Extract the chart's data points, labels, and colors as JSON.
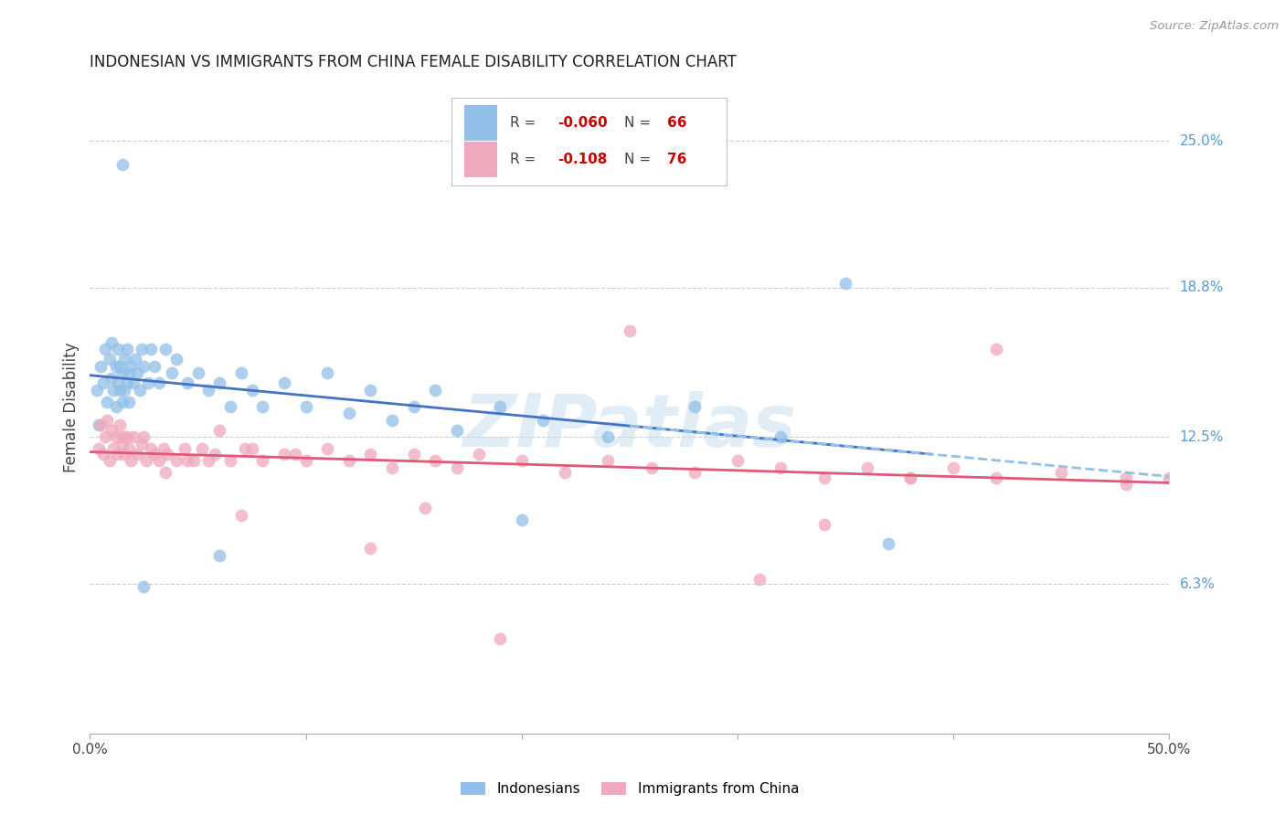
{
  "title": "INDONESIAN VS IMMIGRANTS FROM CHINA FEMALE DISABILITY CORRELATION CHART",
  "source": "Source: ZipAtlas.com",
  "ylabel": "Female Disability",
  "right_yticks": [
    "25.0%",
    "18.8%",
    "12.5%",
    "6.3%"
  ],
  "right_ytick_vals": [
    0.25,
    0.188,
    0.125,
    0.063
  ],
  "xlim": [
    0.0,
    0.5
  ],
  "ylim": [
    0.0,
    0.275
  ],
  "watermark": "ZIPatlas",
  "indonesian_color": "#92c0e8",
  "immigrant_color": "#f0a8bc",
  "trend_blue_solid": "#4472c4",
  "trend_pink_solid": "#e05878",
  "trend_blue_dashed": "#92c0e8",
  "grid_color": "#cccccc",
  "right_label_color": "#5b9bd5",
  "title_color": "#1f1f1f",
  "source_color": "#999999",
  "ylabel_color": "#444444",
  "xtick_color": "#444444",
  "legend_border": "#c0c0c0",
  "legend_r_color": "#cc0000",
  "legend_n_color": "#cc0000",
  "legend_text_color": "#444444",
  "indonesian_x": [
    0.003,
    0.004,
    0.005,
    0.006,
    0.007,
    0.008,
    0.009,
    0.01,
    0.01,
    0.011,
    0.012,
    0.012,
    0.013,
    0.013,
    0.014,
    0.014,
    0.015,
    0.015,
    0.016,
    0.016,
    0.017,
    0.017,
    0.018,
    0.018,
    0.019,
    0.02,
    0.021,
    0.022,
    0.023,
    0.024,
    0.025,
    0.027,
    0.028,
    0.03,
    0.032,
    0.035,
    0.038,
    0.04,
    0.045,
    0.05,
    0.055,
    0.06,
    0.065,
    0.07,
    0.075,
    0.08,
    0.09,
    0.1,
    0.11,
    0.12,
    0.13,
    0.14,
    0.15,
    0.16,
    0.17,
    0.19,
    0.21,
    0.24,
    0.28,
    0.32,
    0.35,
    0.37,
    0.2,
    0.06,
    0.025,
    0.015
  ],
  "indonesian_y": [
    0.145,
    0.13,
    0.155,
    0.148,
    0.162,
    0.14,
    0.158,
    0.15,
    0.165,
    0.145,
    0.155,
    0.138,
    0.148,
    0.162,
    0.145,
    0.155,
    0.14,
    0.152,
    0.158,
    0.145,
    0.148,
    0.162,
    0.152,
    0.14,
    0.155,
    0.148,
    0.158,
    0.152,
    0.145,
    0.162,
    0.155,
    0.148,
    0.162,
    0.155,
    0.148,
    0.162,
    0.152,
    0.158,
    0.148,
    0.152,
    0.145,
    0.148,
    0.138,
    0.152,
    0.145,
    0.138,
    0.148,
    0.138,
    0.152,
    0.135,
    0.145,
    0.132,
    0.138,
    0.145,
    0.128,
    0.138,
    0.132,
    0.125,
    0.138,
    0.125,
    0.19,
    0.08,
    0.09,
    0.075,
    0.062,
    0.24
  ],
  "immigrant_x": [
    0.004,
    0.005,
    0.006,
    0.007,
    0.008,
    0.009,
    0.01,
    0.011,
    0.012,
    0.013,
    0.014,
    0.015,
    0.016,
    0.017,
    0.018,
    0.019,
    0.02,
    0.022,
    0.024,
    0.026,
    0.028,
    0.03,
    0.032,
    0.034,
    0.036,
    0.04,
    0.044,
    0.048,
    0.052,
    0.058,
    0.065,
    0.072,
    0.08,
    0.09,
    0.1,
    0.11,
    0.12,
    0.13,
    0.14,
    0.15,
    0.16,
    0.17,
    0.18,
    0.2,
    0.22,
    0.24,
    0.26,
    0.28,
    0.3,
    0.32,
    0.34,
    0.36,
    0.38,
    0.4,
    0.42,
    0.45,
    0.48,
    0.5,
    0.055,
    0.095,
    0.155,
    0.045,
    0.075,
    0.025,
    0.34,
    0.42,
    0.035,
    0.25,
    0.38,
    0.06,
    0.13,
    0.48,
    0.31,
    0.19,
    0.07,
    0.015
  ],
  "immigrant_y": [
    0.12,
    0.13,
    0.118,
    0.125,
    0.132,
    0.115,
    0.128,
    0.12,
    0.125,
    0.118,
    0.13,
    0.122,
    0.118,
    0.125,
    0.12,
    0.115,
    0.125,
    0.118,
    0.122,
    0.115,
    0.12,
    0.118,
    0.115,
    0.12,
    0.118,
    0.115,
    0.12,
    0.115,
    0.12,
    0.118,
    0.115,
    0.12,
    0.115,
    0.118,
    0.115,
    0.12,
    0.115,
    0.118,
    0.112,
    0.118,
    0.115,
    0.112,
    0.118,
    0.115,
    0.11,
    0.115,
    0.112,
    0.11,
    0.115,
    0.112,
    0.108,
    0.112,
    0.108,
    0.112,
    0.108,
    0.11,
    0.105,
    0.108,
    0.115,
    0.118,
    0.095,
    0.115,
    0.12,
    0.125,
    0.088,
    0.162,
    0.11,
    0.17,
    0.108,
    0.128,
    0.078,
    0.108,
    0.065,
    0.04,
    0.092,
    0.125
  ]
}
